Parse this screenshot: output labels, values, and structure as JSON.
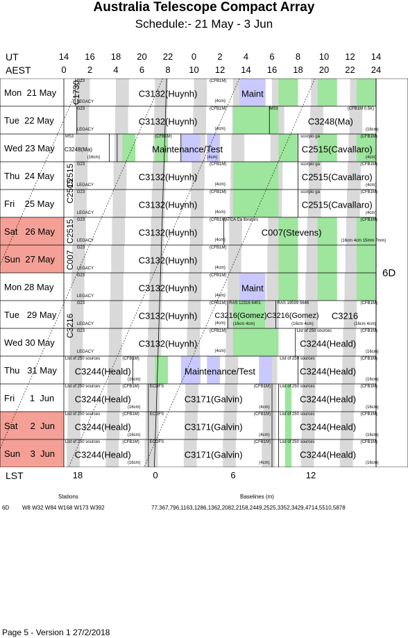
{
  "header": {
    "title": "Australia Telescope Compact Array",
    "subtitle": "Schedule:- 21 May - 3  Jun"
  },
  "axes": {
    "ut_label": "UT",
    "aest_label": "AEST",
    "lst_label": "LST",
    "ut_ticks": [
      "14",
      "16",
      "18",
      "20",
      "22",
      "0",
      "2",
      "4",
      "6",
      "8",
      "10",
      "12",
      "14"
    ],
    "aest_ticks": [
      "0",
      "2",
      "4",
      "6",
      "8",
      "10",
      "12",
      "14",
      "16",
      "18",
      "20",
      "22",
      "24"
    ],
    "lst_ticks": [
      "18",
      "0",
      "6",
      "12"
    ]
  },
  "config": "6D",
  "days": [
    {
      "label": "Mon  21 May",
      "weekend": false
    },
    {
      "label": "Tue  22 May",
      "weekend": false
    },
    {
      "label": "Wed 23 May",
      "weekend": false
    },
    {
      "label": "Thu  24 May",
      "weekend": false
    },
    {
      "label": "Fri    25 May",
      "weekend": false
    },
    {
      "label": "Sat   26 May",
      "weekend": true
    },
    {
      "label": "Sun  27 May",
      "weekend": true
    },
    {
      "label": "Mon 28 May",
      "weekend": false
    },
    {
      "label": "Tue   29 May",
      "weekend": false
    },
    {
      "label": "Wed 30 May",
      "weekend": false
    },
    {
      "label": "Thu   31 May",
      "weekend": false
    },
    {
      "label": "Fri      1  Jun",
      "weekend": false
    },
    {
      "label": "Sat     2  Jun",
      "weekend": true
    },
    {
      "label": "Sun    3  Jun",
      "weekend": true
    }
  ],
  "projects": {
    "c3132": "C3132(Huynh)",
    "maint": "Maint",
    "c3248": "C3248(Ma)",
    "c3248s": "C3248(Ma)",
    "maintest": "Maintenance/Test",
    "c2515": "C2515(Cavallaro)",
    "c007": "C007(Stevens)",
    "c3216a": "C3216(Gomez)",
    "c3216b": "C3216(Gomez)",
    "c3216c": "C3216",
    "c3244": "C3244(Heald)",
    "c3171": "C3171(Galvin)",
    "v_c1730": "C1730",
    "v_c2515a": "C2515",
    "v_c2515b": "C2515",
    "v_c2515c": "C2515",
    "v_c007": "C007",
    "v_c3216": "C3216"
  },
  "notes": {
    "g23": "G23",
    "legacy": "LEGACY",
    "cfb1m": "(CFB1M)",
    "cfb1m05k": "(CFB1M 0.5K)",
    "cm4": "(4cm)",
    "cm16": "(16cm)",
    "ms3": "MS3",
    "scorpio": "scorpio ga",
    "atca_cal": "ATCA Ca librators",
    "c007_rx": "(16cm 4cm 15mm 7mm)",
    "ras12316": "RAS 12316 6401",
    "ras19599": "RAS 19599 5646",
    "cm16_4": "(16cm 4cm)",
    "list250": "List of 250 sources",
    "ecdfs": "ECDFS"
  },
  "footer": {
    "stations_label": "Stations",
    "baselines_label": "Baselines (m)",
    "config": "6D",
    "stations": "W8 W32 W84 W168 W173 W392",
    "baselines": "77,367,796,1163,1286,1362,2082,2158,2449,2525,3352,3429,4714,5510,5878",
    "page": "Page 5 - Version 1  27/2/2018"
  },
  "colors": {
    "grey": "#d9d9d9",
    "green": "#9ee59e",
    "blue": "#c9c9ff",
    "weekend": "#f4a096"
  }
}
